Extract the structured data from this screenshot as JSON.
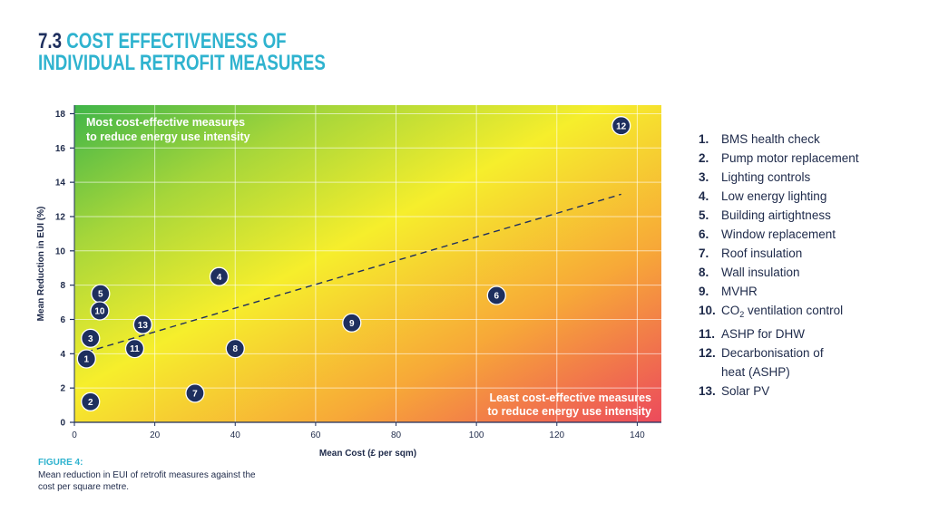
{
  "heading": {
    "number": "7.3",
    "line1": "COST EFFECTIVENESS OF",
    "line2": "INDIVIDUAL RETROFIT MEASURES"
  },
  "figure": {
    "label": "FIGURE 4:",
    "caption": "Mean reduction in EUI of retrofit measures against the cost per square metre."
  },
  "colors": {
    "accent": "#2fb3cf",
    "navy": "#1e2f5e",
    "green": "#3fb549",
    "yellow": "#f6ee2c",
    "red": "#ec4a5c"
  },
  "legend": [
    {
      "num": "1.",
      "label": "BMS health check"
    },
    {
      "num": "2.",
      "label": "Pump motor replacement"
    },
    {
      "num": "3.",
      "label": "Lighting controls"
    },
    {
      "num": "4.",
      "label": "Low energy lighting"
    },
    {
      "num": "5.",
      "label": "Building airtightness"
    },
    {
      "num": "6.",
      "label": "Window replacement"
    },
    {
      "num": "7.",
      "label": "Roof insulation"
    },
    {
      "num": "8.",
      "label": "Wall insulation"
    },
    {
      "num": "9.",
      "label": "MVHR"
    },
    {
      "num": "10.",
      "label": "CO",
      "sub": "2",
      "after": " ventilation control"
    },
    {
      "num": "11.",
      "label": "ASHP for DHW"
    },
    {
      "num": "12.",
      "label": "Decarbonisation of",
      "line2": "heat (ASHP)"
    },
    {
      "num": "13.",
      "label": "Solar PV"
    }
  ],
  "chart_data": {
    "type": "scatter",
    "xlabel": "Mean Cost (£ per sqm)",
    "ylabel": "Mean Reduction in EUI (%)",
    "xlim": [
      0,
      146
    ],
    "ylim": [
      0,
      18.5
    ],
    "xticks": [
      0,
      20,
      40,
      60,
      80,
      100,
      120,
      140
    ],
    "yticks": [
      0,
      2,
      4,
      6,
      8,
      10,
      12,
      14,
      16,
      18
    ],
    "grid": true,
    "background": "gradient green (top-left) to yellow to red (bottom-right)",
    "annotations": {
      "top_left": [
        "Most cost-effective measures",
        "to reduce energy use intensity"
      ],
      "bottom_right": [
        "Least cost-effective measures",
        "to reduce energy use intensity"
      ]
    },
    "trendline": {
      "style": "dashed",
      "from": [
        3,
        4.1
      ],
      "to": [
        136,
        13.3
      ]
    },
    "points": [
      {
        "label": "1",
        "x": 3,
        "y": 3.7
      },
      {
        "label": "2",
        "x": 4,
        "y": 1.2
      },
      {
        "label": "3",
        "x": 4,
        "y": 4.9
      },
      {
        "label": "4",
        "x": 36,
        "y": 8.5
      },
      {
        "label": "5",
        "x": 6.5,
        "y": 7.5
      },
      {
        "label": "6",
        "x": 105,
        "y": 7.4
      },
      {
        "label": "7",
        "x": 30,
        "y": 1.7
      },
      {
        "label": "8",
        "x": 40,
        "y": 4.3
      },
      {
        "label": "9",
        "x": 69,
        "y": 5.8
      },
      {
        "label": "10",
        "x": 6.3,
        "y": 6.5
      },
      {
        "label": "11",
        "x": 15,
        "y": 4.3
      },
      {
        "label": "12",
        "x": 136,
        "y": 17.3
      },
      {
        "label": "13",
        "x": 17,
        "y": 5.7
      }
    ]
  }
}
